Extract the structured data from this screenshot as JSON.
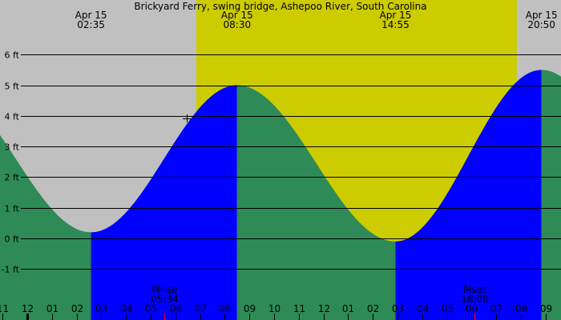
{
  "chart_data": {
    "type": "area",
    "title": "Brickyard Ferry, swing bridge, Ashepoo River, South Carolina",
    "y_unit": "ft",
    "ylim": [
      -1.6,
      6.8
    ],
    "y_ticks": [
      6,
      5,
      4,
      3,
      2,
      1,
      0,
      -1
    ],
    "y_tick_labels": [
      "6 ft",
      "5 ft",
      "4 ft",
      "3 ft",
      "2 ft",
      "1 ft",
      "0 ft",
      "-1 ft"
    ],
    "grid": true,
    "x_hour_labels": [
      "11",
      "12",
      "01",
      "02",
      "03",
      "04",
      "05",
      "06",
      "07",
      "08",
      "09",
      "10",
      "11",
      "12",
      "01",
      "02",
      "03",
      "04",
      "05",
      "06",
      "07",
      "08",
      "09"
    ],
    "tide_extremes": [
      {
        "type": "low",
        "date": "Apr 15",
        "time": "02:35",
        "height_ft": 0.2
      },
      {
        "type": "high",
        "date": "Apr 15",
        "time": "08:30",
        "height_ft": 5.0
      },
      {
        "type": "low",
        "date": "Apr 15",
        "time": "14:55",
        "height_ft": -0.1
      },
      {
        "type": "high",
        "date": "Apr 15",
        "time": "20:50",
        "height_ft": 5.5
      }
    ],
    "daylight": {
      "start": "06:51",
      "end": "19:50"
    },
    "moon_events": [
      {
        "label": "Mrise",
        "time": "05:34"
      },
      {
        "label": "Mset",
        "time": "18:08"
      }
    ],
    "colors": {
      "night": "#c0c0c0",
      "day": "#cccc00",
      "rising": "#0000ff",
      "falling": "#2e8b57",
      "moon_tick": "#ff0000"
    }
  }
}
